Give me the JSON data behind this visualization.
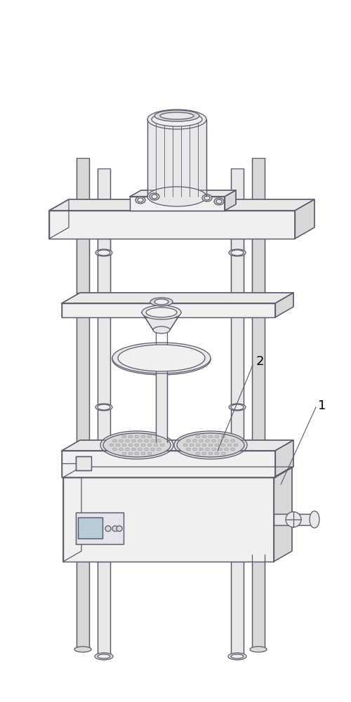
{
  "bg_color": "#ffffff",
  "line_color": "#5a5a6a",
  "face_light": "#f0f0f0",
  "face_mid": "#e8e8e8",
  "face_dark": "#d8d8d8",
  "face_darker": "#c8c8c8",
  "label1": "1",
  "label2": "2",
  "lw": 0.9
}
